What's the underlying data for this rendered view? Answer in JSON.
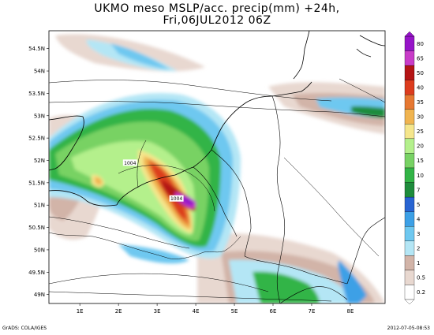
{
  "title": {
    "line1": "UKMO meso MSLP/acc. precip(mm) +24h,",
    "line2": "Fri,06JUL2012 06Z"
  },
  "footer": {
    "left": "GrADS: COLA/IGES",
    "right": "2012-07-05-08:53"
  },
  "map": {
    "lat_labels": [
      "54.5N",
      "54N",
      "53.5N",
      "53N",
      "52.5N",
      "52N",
      "51.5N",
      "51N",
      "50.5N",
      "50N",
      "49.5N",
      "49N"
    ],
    "lon_labels": [
      "1E",
      "2E",
      "3E",
      "4E",
      "5E",
      "6E",
      "7E",
      "8E"
    ],
    "lat_values": [
      54.5,
      54,
      53.5,
      53,
      52.5,
      52,
      51.5,
      51,
      50.5,
      50,
      49.5,
      49
    ],
    "lon_values": [
      1,
      2,
      3,
      4,
      5,
      6,
      7,
      8
    ],
    "lat_range": [
      48.8,
      54.9
    ],
    "lon_range": [
      0.2,
      8.9
    ],
    "isobar_labels": [
      {
        "text": "1004",
        "lon": 2.3,
        "lat": 51.95
      },
      {
        "text": "1004",
        "lon": 3.5,
        "lat": 51.15
      }
    ]
  },
  "legend": {
    "levels": [
      "0.2",
      "0.5",
      "1",
      "2",
      "3",
      "4",
      "5",
      "7",
      "10",
      "15",
      "20",
      "25",
      "30",
      "35",
      "40",
      "50",
      "65",
      "80"
    ],
    "colors": [
      "#ffffff",
      "#e8d8d0",
      "#d2b4a8",
      "#b4e6f5",
      "#6ec8f0",
      "#3ca0e6",
      "#2864d2",
      "#1e8c3c",
      "#32b446",
      "#78d264",
      "#b4f08c",
      "#f5e68c",
      "#f0b450",
      "#e67832",
      "#dc3c1e",
      "#b41414",
      "#c83cc8",
      "#9614c8"
    ]
  }
}
